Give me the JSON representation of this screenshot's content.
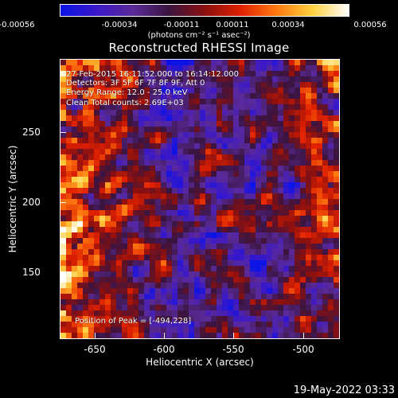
{
  "colorbar": {
    "ticks": [
      "-0.00056",
      "-0.00034",
      "-0.00011",
      "0.00011",
      "0.00034",
      "0.00056"
    ],
    "units": "(photons cm⁻² s⁻¹ asec⁻²)",
    "colors": [
      "#0a14e6",
      "#3a18c8",
      "#5a2a9a",
      "#3a1440",
      "#8a1010",
      "#e02000",
      "#ff7a10",
      "#ffd040",
      "#ffffff"
    ]
  },
  "title": "Reconstructed RHESSI Image",
  "annotations": {
    "time_range": "27-Feb-2015 16:11:52.000 to 16:14:12.000",
    "detectors": "Detectors: 3F 5F 6F 7F 8F 9F, Att 0",
    "energy": "Energy Range: 12.0 - 25.0 keV",
    "clean_counts": "Clean     Total counts: 2.69E+03",
    "peak": "Position of Peak = [-494,228]"
  },
  "chart_data": {
    "type": "heatmap",
    "title": "Reconstructed RHESSI Image",
    "xlabel": "Heliocentric X (arcsec)",
    "ylabel": "Heliocentric Y (arcsec)",
    "x_ticks": [
      "-650",
      "-600",
      "-550",
      "-500"
    ],
    "y_ticks": [
      "250",
      "200",
      "150"
    ],
    "x_tick_values": [
      -650,
      -600,
      -550,
      -500
    ],
    "y_tick_values": [
      250,
      200,
      150
    ],
    "xlim": [
      -672,
      -476
    ],
    "ylim": [
      104,
      300
    ],
    "colorbar_range": [
      -0.00056,
      0.00056
    ],
    "peak_position": [
      -494,
      228
    ]
  },
  "footer_date": "19-May-2022 03:33"
}
